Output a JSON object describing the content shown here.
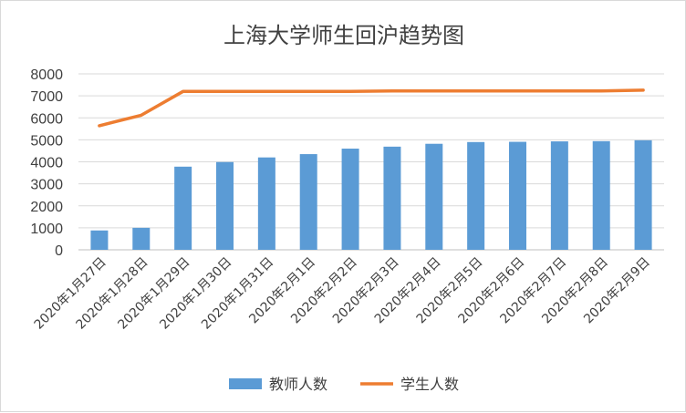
{
  "chart_data": {
    "type": "bar",
    "title": "上海大学师生回沪趋势图",
    "categories": [
      "2020年1月27日",
      "2020年1月28日",
      "2020年1月29日",
      "2020年1月30日",
      "2020年1月31日",
      "2020年2月1日",
      "2020年2月2日",
      "2020年2月3日",
      "2020年2月4日",
      "2020年2月5日",
      "2020年2月6日",
      "2020年2月7日",
      "2020年2月8日",
      "2020年2月9日"
    ],
    "series": [
      {
        "name": "教师人数",
        "kind": "bar",
        "color": "#5b9bd5",
        "values": [
          880,
          1000,
          3780,
          3990,
          4200,
          4350,
          4600,
          4690,
          4820,
          4900,
          4910,
          4930,
          4940,
          4980
        ]
      },
      {
        "name": "学生人数",
        "kind": "line",
        "color": "#ed7d31",
        "values": [
          5640,
          6120,
          7200,
          7200,
          7200,
          7200,
          7200,
          7220,
          7220,
          7220,
          7220,
          7220,
          7220,
          7260
        ]
      }
    ],
    "yticks": [
      0,
      1000,
      2000,
      3000,
      4000,
      5000,
      6000,
      7000,
      8000
    ],
    "ylim": [
      0,
      8000
    ],
    "grid": true,
    "legend_position": "bottom"
  }
}
